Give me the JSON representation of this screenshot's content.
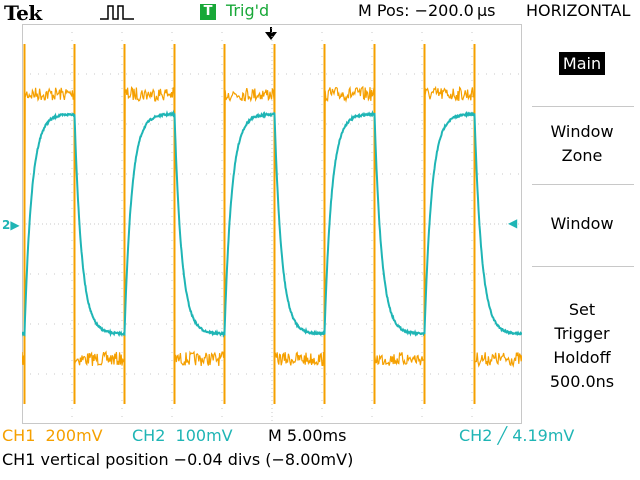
{
  "header": {
    "brand": "Tek",
    "acquisition_icon": "run-pulse-icon",
    "trigger_badge": "T",
    "trigger_status": "Trig'd",
    "main_position": "M Pos: −200.0 μs",
    "menu_title": "HORIZONTAL"
  },
  "sidebar": {
    "items": [
      {
        "label": "Main",
        "selected": true
      },
      {
        "label": "Window\nZone",
        "selected": false
      },
      {
        "label": "Window",
        "selected": false
      },
      {
        "label": "Set\nTrigger\nHoldoff\n500.0ns",
        "selected": false
      }
    ]
  },
  "markers": {
    "ch2_ground": "2",
    "trigger_level": "◀"
  },
  "status": {
    "ch1": "CH1  200mV",
    "ch2": "CH2  100mV",
    "timebase": "M 5.00ms",
    "trigger": "CH2 ╱ 4.19mV"
  },
  "message": "CH1 vertical position −0.04 divs (−8.00mV)",
  "colors": {
    "ch1": "#f5a000",
    "ch2": "#1fb5b5",
    "trigger_status": "#18a838",
    "grid": "#c8c8c8"
  },
  "chart_data": {
    "type": "line",
    "grid": true,
    "divisions": {
      "x": 10,
      "y": 8
    },
    "x_scale_per_div": "5.00ms",
    "series": [
      {
        "name": "CH1",
        "scale_per_div": "200mV",
        "shape": "square",
        "period_ms": 10,
        "high_div": 2.6,
        "low_div": -2.7,
        "first_rise_ms": 0.25,
        "duty": 0.5
      },
      {
        "name": "CH2",
        "scale_per_div": "100mV",
        "shape": "rounded-square",
        "period_ms": 10,
        "high_div": 2.2,
        "low_div": -2.2,
        "lag_ms": 1.2
      }
    ]
  }
}
